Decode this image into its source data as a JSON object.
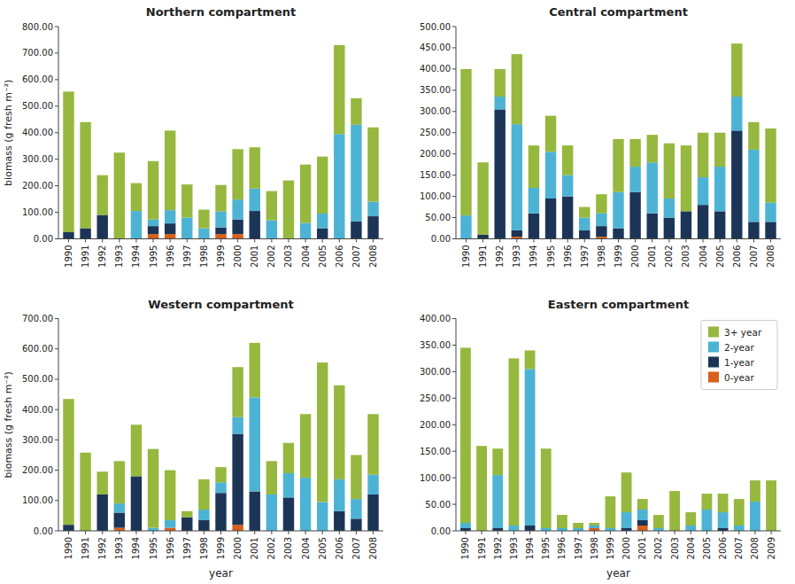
{
  "chart_data": [
    {
      "type": "bar",
      "stacked": true,
      "grid": false,
      "title": "Northern compartment",
      "y_label": "biomass (g fresh m⁻²)",
      "categories": [
        "1990",
        "1991",
        "1992",
        "1993",
        "1994",
        "1995",
        "1996",
        "1997",
        "1998",
        "1999",
        "2000",
        "2001",
        "2002",
        "2003",
        "2004",
        "2005",
        "2006",
        "2007",
        "2008"
      ],
      "series": [
        {
          "color": "#d8601c",
          "values": [
            0,
            0,
            0,
            0,
            0,
            18,
            18,
            0,
            0,
            18,
            18,
            0,
            0,
            0,
            0,
            0,
            0,
            0,
            0
          ]
        },
        {
          "color": "#1c3557",
          "values": [
            25,
            40,
            90,
            0,
            0,
            30,
            40,
            0,
            0,
            25,
            55,
            105,
            0,
            0,
            0,
            40,
            0,
            65,
            85
          ]
        },
        {
          "color": "#4db3d4",
          "values": [
            0,
            0,
            0,
            0,
            105,
            25,
            50,
            80,
            40,
            60,
            75,
            85,
            70,
            0,
            60,
            55,
            395,
            365,
            55
          ]
        },
        {
          "color": "#96b83e",
          "values": [
            530,
            400,
            150,
            325,
            105,
            220,
            300,
            125,
            70,
            100,
            190,
            155,
            110,
            220,
            220,
            215,
            335,
            100,
            280
          ]
        }
      ],
      "ylim": [
        0,
        800
      ],
      "yticks": [
        {
          "value": 0,
          "label": "0.00"
        },
        {
          "value": 100,
          "label": "100.00"
        },
        {
          "value": 200,
          "label": "200.00"
        },
        {
          "value": 300,
          "label": "300.00"
        },
        {
          "value": 400,
          "label": "400.00"
        },
        {
          "value": 500,
          "label": "500.00"
        },
        {
          "value": 600,
          "label": "600.00"
        },
        {
          "value": 700,
          "label": "700.00"
        },
        {
          "value": 800,
          "label": "800.00"
        }
      ]
    },
    {
      "type": "bar",
      "stacked": true,
      "grid": false,
      "title": "Central compartment",
      "categories": [
        "1990",
        "1991",
        "1992",
        "1993",
        "1994",
        "1995",
        "1996",
        "1997",
        "1998",
        "1999",
        "2000",
        "2001",
        "2002",
        "2003",
        "2004",
        "2005",
        "2006",
        "2007",
        "2008"
      ],
      "series": [
        {
          "color": "#d8601c",
          "values": [
            0,
            0,
            0,
            5,
            0,
            0,
            0,
            0,
            5,
            0,
            0,
            0,
            0,
            0,
            0,
            0,
            0,
            0,
            0
          ]
        },
        {
          "color": "#1c3557",
          "values": [
            0,
            10,
            305,
            15,
            60,
            95,
            100,
            20,
            25,
            25,
            110,
            60,
            50,
            65,
            80,
            65,
            255,
            40,
            40
          ]
        },
        {
          "color": "#4db3d4",
          "values": [
            55,
            0,
            30,
            250,
            60,
            110,
            50,
            30,
            30,
            85,
            60,
            120,
            45,
            0,
            65,
            105,
            80,
            170,
            45
          ]
        },
        {
          "color": "#96b83e",
          "values": [
            345,
            170,
            65,
            165,
            100,
            85,
            70,
            25,
            45,
            125,
            65,
            65,
            130,
            155,
            105,
            80,
            125,
            65,
            175
          ]
        }
      ],
      "ylim": [
        0,
        500
      ],
      "yticks": [
        {
          "value": 0,
          "label": "0.00"
        },
        {
          "value": 50,
          "label": "50.00"
        },
        {
          "value": 100,
          "label": "100.00"
        },
        {
          "value": 150,
          "label": "150.00"
        },
        {
          "value": 200,
          "label": "200.00"
        },
        {
          "value": 250,
          "label": "250.00"
        },
        {
          "value": 300,
          "label": "300.00"
        },
        {
          "value": 350,
          "label": "350.00"
        },
        {
          "value": 400,
          "label": "400.00"
        },
        {
          "value": 450,
          "label": "450.00"
        },
        {
          "value": 500,
          "label": "500.00"
        }
      ]
    },
    {
      "type": "bar",
      "stacked": true,
      "grid": false,
      "title": "Western compartment",
      "x_label": "year",
      "y_label": "biomass (g fresh m⁻²)",
      "categories": [
        "1990",
        "1991",
        "1992",
        "1993",
        "1994",
        "1995",
        "1996",
        "1997",
        "1998",
        "1999",
        "2000",
        "2001",
        "2002",
        "2003",
        "2004",
        "2005",
        "2006",
        "2007",
        "2008"
      ],
      "series": [
        {
          "color": "#d8601c",
          "values": [
            0,
            0,
            0,
            10,
            0,
            0,
            10,
            0,
            0,
            0,
            20,
            0,
            0,
            0,
            0,
            0,
            0,
            0,
            0
          ]
        },
        {
          "color": "#1c3557",
          "values": [
            20,
            0,
            120,
            50,
            180,
            0,
            0,
            45,
            35,
            125,
            300,
            130,
            0,
            110,
            0,
            0,
            65,
            40,
            120
          ]
        },
        {
          "color": "#4db3d4",
          "values": [
            0,
            0,
            0,
            30,
            0,
            10,
            25,
            0,
            35,
            35,
            55,
            310,
            120,
            80,
            175,
            95,
            105,
            65,
            65
          ]
        },
        {
          "color": "#96b83e",
          "values": [
            415,
            258,
            75,
            140,
            170,
            260,
            165,
            20,
            100,
            50,
            165,
            180,
            110,
            100,
            210,
            460,
            310,
            145,
            200
          ]
        }
      ],
      "ylim": [
        0,
        700
      ],
      "yticks": [
        {
          "value": 0,
          "label": "0.00"
        },
        {
          "value": 100,
          "label": "100.00"
        },
        {
          "value": 200,
          "label": "200.00"
        },
        {
          "value": 300,
          "label": "300.00"
        },
        {
          "value": 400,
          "label": "400.00"
        },
        {
          "value": 500,
          "label": "500.00"
        },
        {
          "value": 600,
          "label": "600.00"
        },
        {
          "value": 700,
          "label": "700.00"
        }
      ]
    },
    {
      "type": "bar",
      "stacked": true,
      "grid": false,
      "title": "Eastern compartment",
      "x_label": "year",
      "legend": "upper right",
      "categories": [
        "1990",
        "1991",
        "1992",
        "1993",
        "1994",
        "1995",
        "1996",
        "1997",
        "1998",
        "1999",
        "2000",
        "2001",
        "2002",
        "2003",
        "2004",
        "2005",
        "2006",
        "2007",
        "2008",
        "2009"
      ],
      "series": [
        {
          "name": "0-year",
          "color": "#d8601c",
          "values": [
            0,
            0,
            0,
            0,
            0,
            0,
            0,
            0,
            5,
            0,
            0,
            10,
            0,
            0,
            0,
            0,
            0,
            0,
            0,
            0
          ]
        },
        {
          "name": "1-year",
          "color": "#1c3557",
          "values": [
            5,
            0,
            5,
            0,
            10,
            0,
            0,
            0,
            0,
            0,
            5,
            10,
            0,
            0,
            0,
            0,
            5,
            0,
            0,
            0
          ]
        },
        {
          "name": "2-year",
          "color": "#4db3d4",
          "values": [
            10,
            0,
            100,
            10,
            295,
            5,
            5,
            5,
            5,
            5,
            30,
            20,
            5,
            0,
            10,
            40,
            30,
            10,
            55,
            0
          ]
        },
        {
          "name": "3+ year",
          "color": "#96b83e",
          "values": [
            330,
            160,
            50,
            315,
            35,
            150,
            25,
            10,
            5,
            60,
            75,
            20,
            25,
            75,
            25,
            30,
            35,
            50,
            40,
            95
          ]
        }
      ],
      "ylim": [
        0,
        400
      ],
      "yticks": [
        {
          "value": 0,
          "label": "0.00"
        },
        {
          "value": 50,
          "label": "50.00"
        },
        {
          "value": 100,
          "label": "100.00"
        },
        {
          "value": 150,
          "label": "150.00"
        },
        {
          "value": 200,
          "label": "200.00"
        },
        {
          "value": 250,
          "label": "250.00"
        },
        {
          "value": 300,
          "label": "300.00"
        },
        {
          "value": 350,
          "label": "350.00"
        },
        {
          "value": 400,
          "label": "400.00"
        }
      ]
    }
  ]
}
